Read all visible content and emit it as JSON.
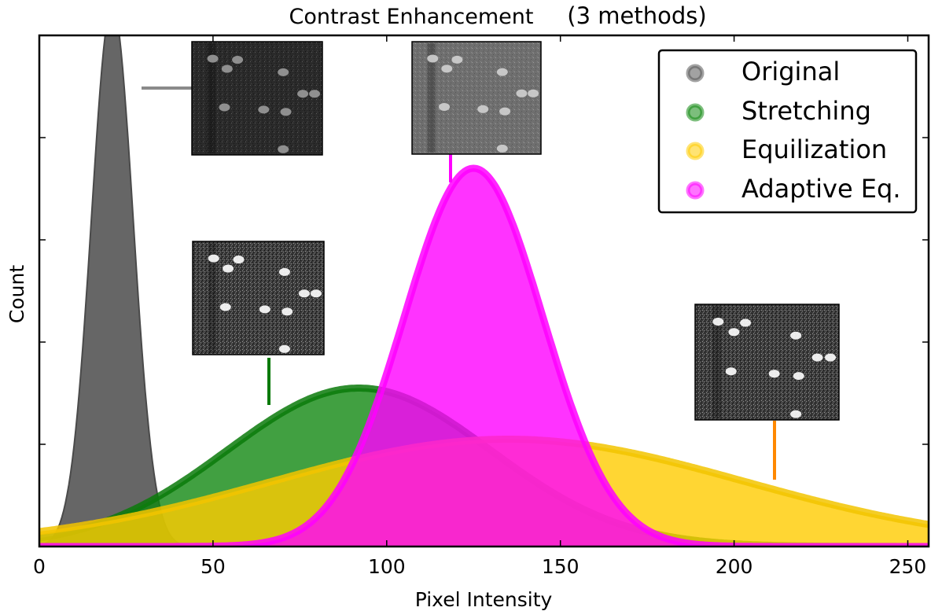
{
  "chart_data": {
    "type": "area",
    "title": "Contrast Enhancement",
    "subtitle": "(3 methods)",
    "xlabel": "Pixel Intensity",
    "ylabel": "Count",
    "xlim": [
      0,
      256
    ],
    "ylim": [
      0,
      100
    ],
    "x_ticks": [
      0,
      50,
      100,
      150,
      200,
      250
    ],
    "y_ticks_unlabeled": [
      20,
      40,
      60,
      80,
      100
    ],
    "grid": false,
    "legend": "top-right",
    "series": [
      {
        "name": "Original",
        "color": "#555555",
        "edge": "#4a4a4a",
        "mean": 21,
        "sd": 6.0,
        "peak": 106
      },
      {
        "name": "Stretching",
        "color": "#118811",
        "edge": "#0a7a0a",
        "mean": 92,
        "sd": 38,
        "peak": 31
      },
      {
        "name": "Equilization",
        "color": "#ffcc00",
        "edge": "#f2c400",
        "mean": 135,
        "sd": 68,
        "peak": 21
      },
      {
        "name": "Adaptive Eq.",
        "color": "#ff00ff",
        "edge": "#ff00ff",
        "mean": 125,
        "sd": 20,
        "peak": 74
      }
    ],
    "annotations": [
      {
        "name": "original-thumbnail",
        "series": "Original",
        "anchor_x": 30
      },
      {
        "name": "stretching-thumbnail",
        "series": "Stretching",
        "anchor_x": 66
      },
      {
        "name": "adaptive-thumbnail",
        "series": "Adaptive Eq.",
        "anchor_x": 118
      },
      {
        "name": "equalization-thumbnail",
        "series": "Equilization",
        "anchor_x": 211
      }
    ]
  }
}
